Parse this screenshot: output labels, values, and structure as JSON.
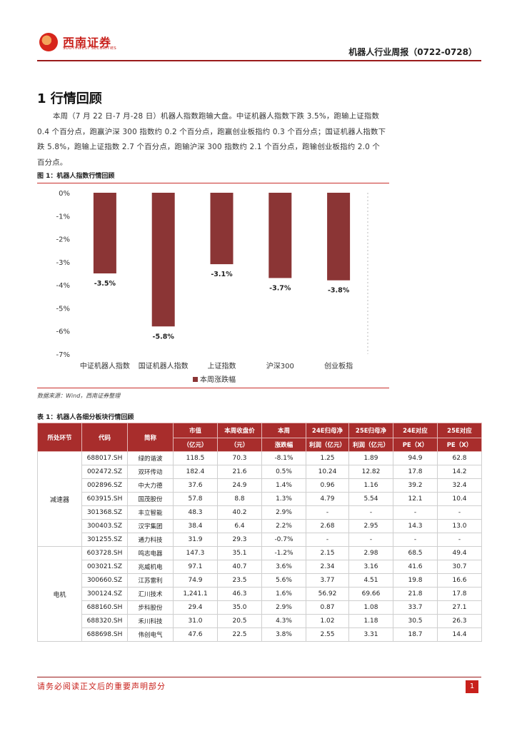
{
  "header": {
    "logo_cn": "西南证券",
    "logo_en": "SOUTHWEST SECURITIES",
    "report_title": "机器人行业周报（0722-0728）"
  },
  "section": {
    "title": "1 行情回顾",
    "paragraph": "本周（7 月 22 日-7 月-28 日）机器人指数跑输大盘。中证机器人指数下跌 3.5%，跑输上证指数 0.4 个百分点，跑赢沪深 300 指数约 0.2 个百分点，跑赢创业板指约 0.3 个百分点；国证机器人指数下跌 5.8%，跑输上证指数 2.7 个百分点，跑输沪深 300 指数约 2.1 个百分点，跑输创业板指约 2.0 个百分点。"
  },
  "figure": {
    "title": "图 1：机器人指数行情回顾",
    "source": "数据来源：Wind，西南证券整理"
  },
  "chart_data": {
    "type": "bar",
    "categories": [
      "中证机器人指数",
      "国证机器人指数",
      "上证指数",
      "沪深300",
      "创业板指"
    ],
    "values": [
      -3.5,
      -5.8,
      -3.1,
      -3.7,
      -3.8
    ],
    "value_labels": [
      "-3.5%",
      "-5.8%",
      "-3.1%",
      "-3.7%",
      "-3.8%"
    ],
    "series_name": "本周涨跌幅",
    "ylim": [
      -7,
      0
    ],
    "yticks": [
      "0%",
      "-1%",
      "-2%",
      "-3%",
      "-4%",
      "-5%",
      "-6%",
      "-7%"
    ],
    "bar_color": "#8b3535",
    "legend": "bottom",
    "grid": false
  },
  "table": {
    "title": "表 1：机器人各细分板块行情回顾",
    "headers1": [
      "所处环节",
      "代码",
      "简称",
      "市值",
      "本周收盘价",
      "本周",
      "24E归母净",
      "25E归母净",
      "24E对应",
      "25E对应"
    ],
    "headers2": [
      "（亿元）",
      "（元）",
      "涨跌幅",
      "利润（亿元）",
      "利润（亿元）",
      "PE（X）",
      "PE（X）"
    ],
    "groups": [
      {
        "segment": "减速器",
        "rows": [
          [
            "688017.SH",
            "绿的谐波",
            "118.5",
            "70.3",
            "-8.1%",
            "1.25",
            "1.89",
            "94.9",
            "62.8"
          ],
          [
            "002472.SZ",
            "双环传动",
            "182.4",
            "21.6",
            "0.5%",
            "10.24",
            "12.82",
            "17.8",
            "14.2"
          ],
          [
            "002896.SZ",
            "中大力德",
            "37.6",
            "24.9",
            "1.4%",
            "0.96",
            "1.16",
            "39.2",
            "32.4"
          ],
          [
            "603915.SH",
            "国茂股份",
            "57.8",
            "8.8",
            "1.3%",
            "4.79",
            "5.54",
            "12.1",
            "10.4"
          ],
          [
            "301368.SZ",
            "丰立智能",
            "48.3",
            "40.2",
            "2.9%",
            "-",
            "-",
            "-",
            "-"
          ],
          [
            "300403.SZ",
            "汉宇集团",
            "38.4",
            "6.4",
            "2.2%",
            "2.68",
            "2.95",
            "14.3",
            "13.0"
          ],
          [
            "301255.SZ",
            "通力科技",
            "31.9",
            "29.3",
            "-0.7%",
            "-",
            "-",
            "-",
            "-"
          ]
        ]
      },
      {
        "segment": "电机",
        "rows": [
          [
            "603728.SH",
            "鸣志电器",
            "147.3",
            "35.1",
            "-1.2%",
            "2.15",
            "2.98",
            "68.5",
            "49.4"
          ],
          [
            "003021.SZ",
            "兆威机电",
            "97.1",
            "40.7",
            "3.6%",
            "2.34",
            "3.16",
            "41.6",
            "30.7"
          ],
          [
            "300660.SZ",
            "江苏雷利",
            "74.9",
            "23.5",
            "5.6%",
            "3.77",
            "4.51",
            "19.8",
            "16.6"
          ],
          [
            "300124.SZ",
            "汇川技术",
            "1,241.1",
            "46.3",
            "1.6%",
            "56.92",
            "69.66",
            "21.8",
            "17.8"
          ],
          [
            "688160.SH",
            "步科股份",
            "29.4",
            "35.0",
            "2.9%",
            "0.87",
            "1.08",
            "33.7",
            "27.1"
          ],
          [
            "688320.SH",
            "禾川科技",
            "31.0",
            "20.5",
            "4.3%",
            "1.02",
            "1.18",
            "30.5",
            "26.3"
          ],
          [
            "688698.SH",
            "伟创电气",
            "47.6",
            "22.5",
            "3.8%",
            "2.55",
            "3.31",
            "18.7",
            "14.4"
          ]
        ]
      }
    ]
  },
  "footer": {
    "note": "请务必阅读正文后的重要声明部分",
    "page": "1"
  }
}
